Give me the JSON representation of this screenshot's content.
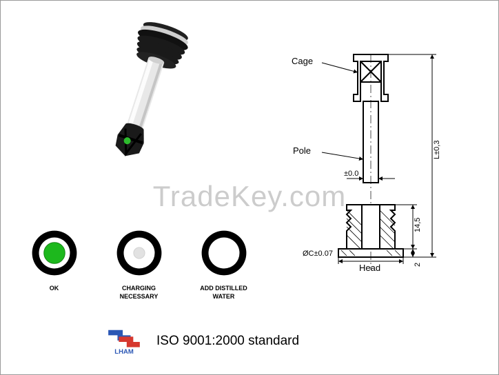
{
  "watermark": "TradeKey.com",
  "render": {
    "body_top_color": "#1a1a1a",
    "body_disc_color": "#bfbfbf",
    "tube_color": "#e8e8e8",
    "tube_highlight": "#ffffff",
    "cage_color": "#1a1a1a",
    "ball_color": "#2dbb2d"
  },
  "status": [
    {
      "label": "OK",
      "outer": "#000000",
      "mid": "#ffffff",
      "inner": "#1db81d",
      "inner_stroke": "#0d7f0d",
      "inner_r": 17
    },
    {
      "label": "CHARGING NECESSARY",
      "outer": "#000000",
      "mid": "#ffffff",
      "inner": "#e2e2e2",
      "inner_stroke": "#cfcfcf",
      "inner_r": 9
    },
    {
      "label": "ADD DISTILLED WATER",
      "outer": "#000000",
      "mid": "#ffffff",
      "inner": "#ffffff",
      "inner_stroke": "#ffffff",
      "inner_r": 0
    }
  ],
  "drawing": {
    "labels": {
      "cage": "Cage",
      "pole": "Pole",
      "head": "Head"
    },
    "dims": {
      "length": "L±0,3",
      "head_h": "14,5",
      "flange_t": "2",
      "head_od": "ØC±0.07",
      "tube_od": "±0.0"
    }
  },
  "footer": {
    "logo_text": "LHAM",
    "logo_blue": "#2b57b5",
    "logo_red": "#d6382f",
    "iso": "ISO 9001:2000 standard"
  }
}
